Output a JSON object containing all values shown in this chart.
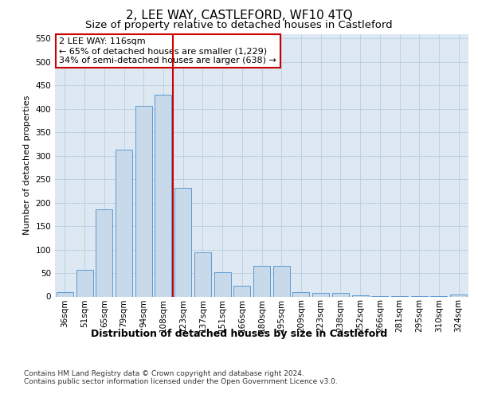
{
  "title": "2, LEE WAY, CASTLEFORD, WF10 4TQ",
  "subtitle": "Size of property relative to detached houses in Castleford",
  "xlabel": "Distribution of detached houses by size in Castleford",
  "ylabel": "Number of detached properties",
  "categories": [
    "36sqm",
    "51sqm",
    "65sqm",
    "79sqm",
    "94sqm",
    "108sqm",
    "123sqm",
    "137sqm",
    "151sqm",
    "166sqm",
    "180sqm",
    "195sqm",
    "209sqm",
    "223sqm",
    "238sqm",
    "252sqm",
    "266sqm",
    "281sqm",
    "295sqm",
    "310sqm",
    "324sqm"
  ],
  "values": [
    10,
    57,
    186,
    313,
    407,
    430,
    232,
    94,
    52,
    23,
    65,
    65,
    10,
    8,
    8,
    2,
    1,
    1,
    1,
    1,
    4
  ],
  "bar_color": "#c8d9ea",
  "bar_edge_color": "#5b9bd5",
  "vline_x": 5.5,
  "vline_color": "#cc0000",
  "annotation_text": "2 LEE WAY: 116sqm\n← 65% of detached houses are smaller (1,229)\n34% of semi-detached houses are larger (638) →",
  "annotation_box_color": "#ffffff",
  "annotation_box_edge_color": "#cc0000",
  "ylim": [
    0,
    560
  ],
  "yticks": [
    0,
    50,
    100,
    150,
    200,
    250,
    300,
    350,
    400,
    450,
    500,
    550
  ],
  "grid_color": "#b8cfe0",
  "background_color": "#dde8f2",
  "footer_text": "Contains HM Land Registry data © Crown copyright and database right 2024.\nContains public sector information licensed under the Open Government Licence v3.0.",
  "title_fontsize": 11,
  "subtitle_fontsize": 9.5,
  "xlabel_fontsize": 9,
  "ylabel_fontsize": 8,
  "tick_fontsize": 7.5,
  "annotation_fontsize": 8,
  "footer_fontsize": 6.5
}
